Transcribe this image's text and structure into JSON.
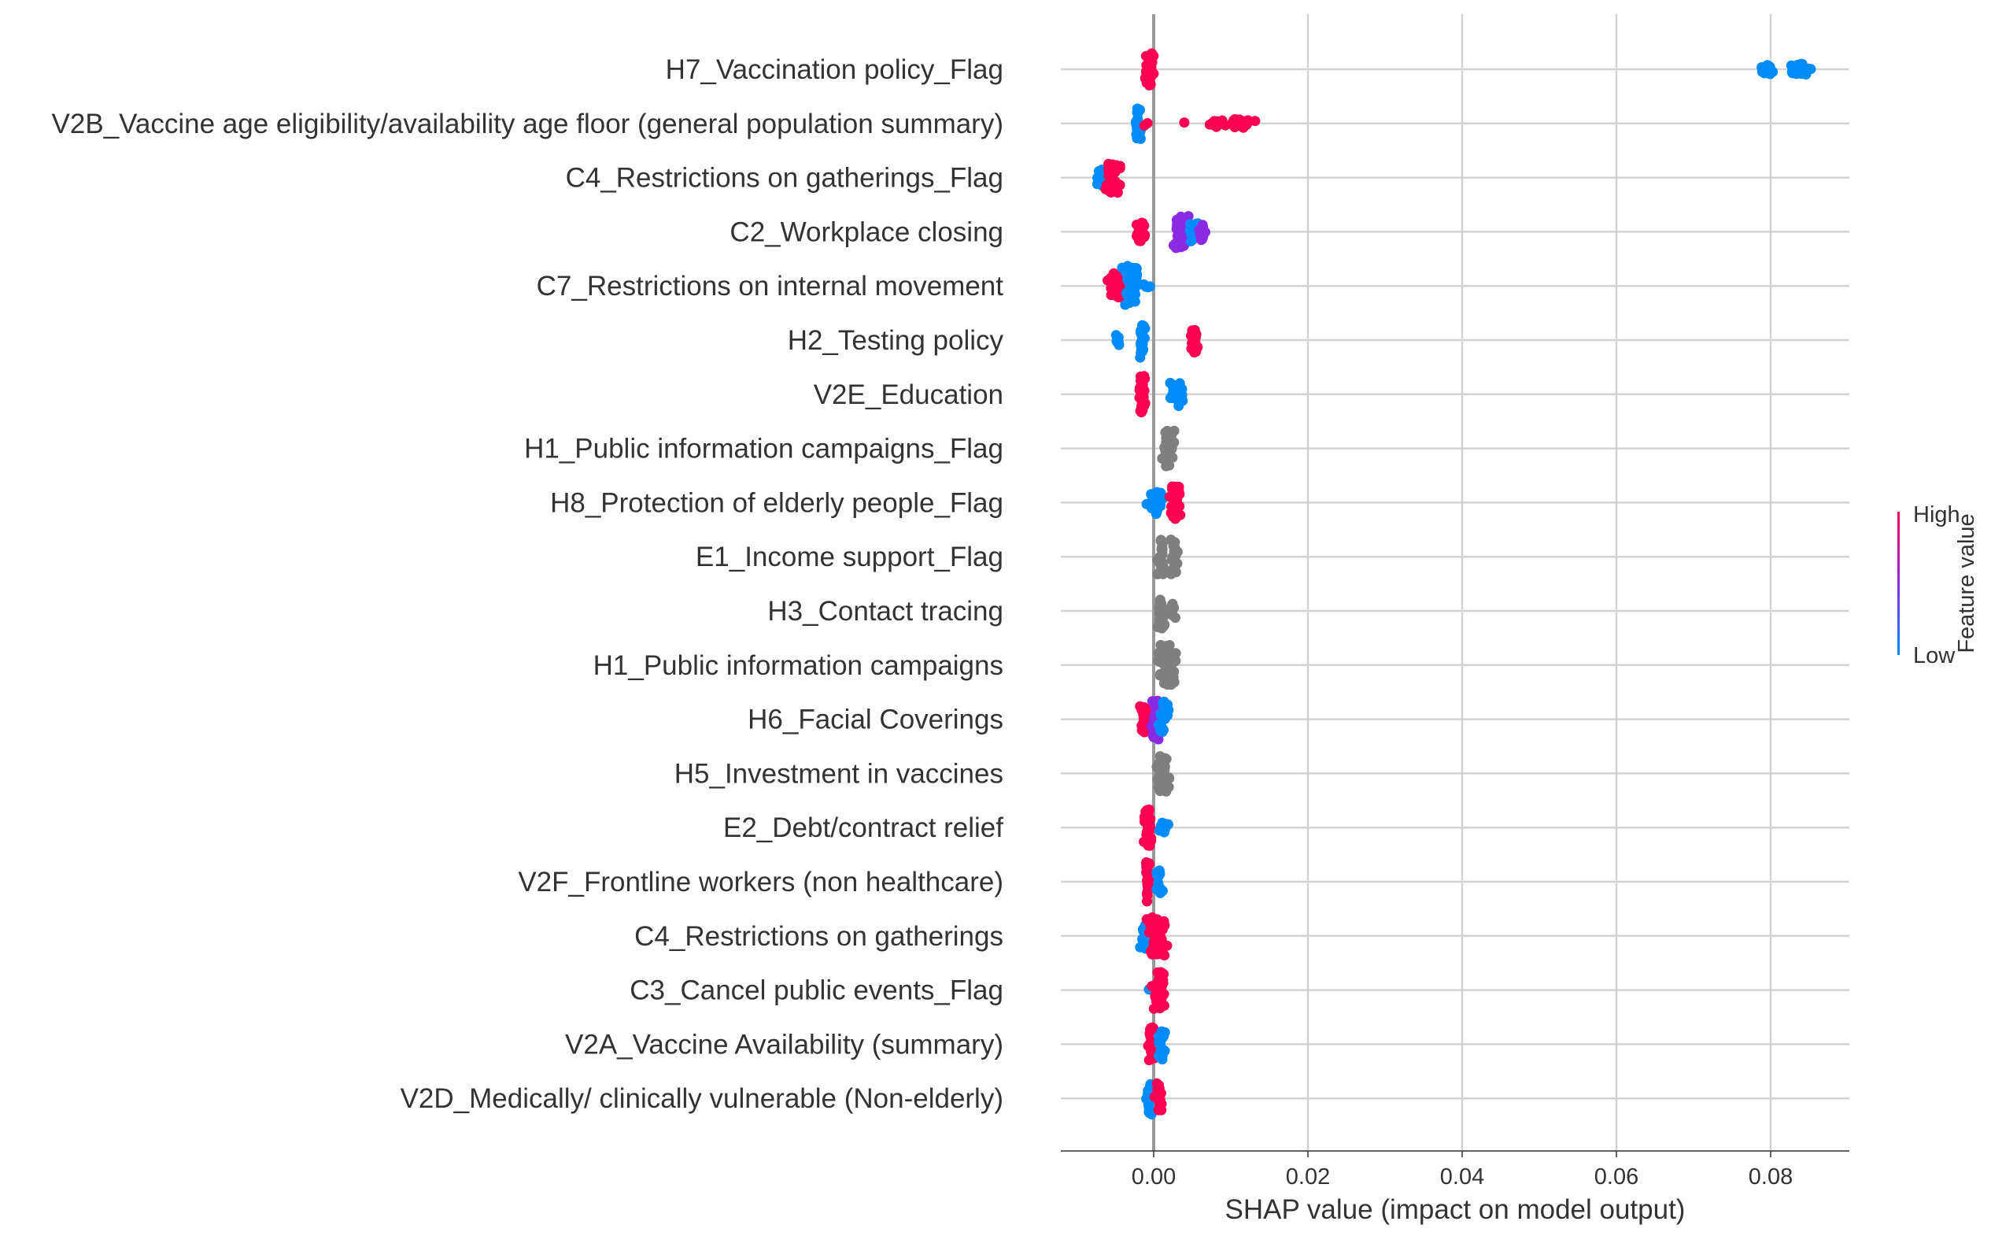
{
  "chart_data": {
    "type": "scatter",
    "subtype": "shap-beeswarm",
    "title": "",
    "xlabel": "SHAP value (impact on model output)",
    "ylabel": "",
    "xlim": [
      -0.012,
      0.09
    ],
    "xticks": [
      0.0,
      0.02,
      0.04,
      0.06,
      0.08
    ],
    "xtick_labels": [
      "0.00",
      "0.02",
      "0.04",
      "0.06",
      "0.08"
    ],
    "grid": true,
    "colorbar": {
      "label": "Feature value",
      "high_label": "High",
      "low_label": "Low",
      "high_color": "#ff0052",
      "mid_color": "#8a2be2",
      "low_color": "#008bfb",
      "nan_color": "#7f7f7f"
    },
    "features": [
      {
        "name": "H7_Vaccination policy_Flag",
        "clusters": [
          {
            "center": -0.0005,
            "width": 0.0006,
            "spread": 0.7,
            "count": 40,
            "color": "high"
          },
          {
            "center": 0.0795,
            "width": 0.0012,
            "spread": 0.25,
            "count": 12,
            "color": "low"
          },
          {
            "center": 0.0838,
            "width": 0.0018,
            "spread": 0.25,
            "count": 18,
            "color": "low"
          }
        ]
      },
      {
        "name": "V2B_Vaccine age eligibility/availability age floor (general population summary)",
        "clusters": [
          {
            "center": -0.002,
            "width": 0.0004,
            "spread": 0.7,
            "count": 30,
            "color": "low"
          },
          {
            "center": -0.001,
            "width": 0.0003,
            "spread": 0.1,
            "count": 2,
            "color": "high"
          },
          {
            "center": 0.004,
            "width": 0.0002,
            "spread": 0.05,
            "count": 1,
            "color": "high"
          },
          {
            "center": 0.0075,
            "width": 0.0015,
            "spread": 0.15,
            "count": 12,
            "color": "high"
          },
          {
            "center": 0.011,
            "width": 0.0018,
            "spread": 0.2,
            "count": 24,
            "color": "high"
          }
        ]
      },
      {
        "name": "C4_Restrictions on gatherings_Flag",
        "clusters": [
          {
            "center": -0.0068,
            "width": 0.0008,
            "spread": 0.35,
            "count": 20,
            "color": "low"
          },
          {
            "center": -0.0052,
            "width": 0.0009,
            "spread": 0.65,
            "count": 40,
            "color": "high"
          }
        ]
      },
      {
        "name": "C2_Workplace closing",
        "clusters": [
          {
            "center": -0.0015,
            "width": 0.0007,
            "spread": 0.4,
            "count": 25,
            "color": "high"
          },
          {
            "center": 0.0035,
            "width": 0.0011,
            "spread": 0.7,
            "count": 45,
            "color": "mid"
          },
          {
            "center": 0.0052,
            "width": 0.0007,
            "spread": 0.4,
            "count": 14,
            "color": "low"
          },
          {
            "center": 0.0063,
            "width": 0.0006,
            "spread": 0.35,
            "count": 12,
            "color": "mid"
          }
        ]
      },
      {
        "name": "C7_Restrictions on internal movement",
        "clusters": [
          {
            "center": -0.005,
            "width": 0.001,
            "spread": 0.55,
            "count": 30,
            "color": "high"
          },
          {
            "center": -0.0028,
            "width": 0.0011,
            "spread": 0.85,
            "count": 50,
            "color": "low"
          },
          {
            "center": -0.001,
            "width": 0.0005,
            "spread": 0.15,
            "count": 4,
            "color": "low"
          }
        ]
      },
      {
        "name": "H2_Testing policy",
        "clusters": [
          {
            "center": -0.0048,
            "width": 0.0004,
            "spread": 0.25,
            "count": 8,
            "color": "low"
          },
          {
            "center": -0.0015,
            "width": 0.0003,
            "spread": 0.8,
            "count": 30,
            "color": "low"
          },
          {
            "center": 0.0053,
            "width": 0.0004,
            "spread": 0.55,
            "count": 25,
            "color": "high"
          }
        ]
      },
      {
        "name": "V2E_Education",
        "clusters": [
          {
            "center": -0.0015,
            "width": 0.0004,
            "spread": 0.8,
            "count": 35,
            "color": "high"
          },
          {
            "center": 0.003,
            "width": 0.001,
            "spread": 0.5,
            "count": 25,
            "color": "low"
          }
        ]
      },
      {
        "name": "H1_Public information campaigns_Flag",
        "clusters": [
          {
            "center": 0.002,
            "width": 0.0006,
            "spread": 0.8,
            "count": 45,
            "color": "nan"
          }
        ]
      },
      {
        "name": "H8_Protection of elderly people_Flag",
        "clusters": [
          {
            "center": 0.0003,
            "width": 0.0008,
            "spread": 0.5,
            "count": 22,
            "color": "low"
          },
          {
            "center": 0.0028,
            "width": 0.0007,
            "spread": 0.75,
            "count": 40,
            "color": "high"
          }
        ]
      },
      {
        "name": "E1_Income support_Flag",
        "clusters": [
          {
            "center": 0.001,
            "width": 0.0005,
            "spread": 0.75,
            "count": 30,
            "color": "nan"
          },
          {
            "center": 0.0027,
            "width": 0.0005,
            "spread": 0.75,
            "count": 30,
            "color": "nan"
          }
        ]
      },
      {
        "name": "H3_Contact tracing",
        "clusters": [
          {
            "center": 0.001,
            "width": 0.0004,
            "spread": 0.8,
            "count": 28,
            "color": "nan"
          },
          {
            "center": 0.0023,
            "width": 0.0006,
            "spread": 0.35,
            "count": 15,
            "color": "nan"
          }
        ]
      },
      {
        "name": "H1_Public information campaigns",
        "clusters": [
          {
            "center": 0.0016,
            "width": 0.0011,
            "spread": 0.85,
            "count": 55,
            "color": "nan"
          }
        ]
      },
      {
        "name": "H6_Facial Coverings",
        "clusters": [
          {
            "center": -0.0012,
            "width": 0.0005,
            "spread": 0.6,
            "count": 25,
            "color": "high"
          },
          {
            "center": 0.0003,
            "width": 0.0006,
            "spread": 0.85,
            "count": 30,
            "color": "mid"
          },
          {
            "center": 0.0013,
            "width": 0.0005,
            "spread": 0.75,
            "count": 25,
            "color": "low"
          }
        ]
      },
      {
        "name": "H5_Investment in vaccines",
        "clusters": [
          {
            "center": 0.0012,
            "width": 0.0007,
            "spread": 0.85,
            "count": 40,
            "color": "nan"
          }
        ]
      },
      {
        "name": "E2_Debt/contract relief",
        "clusters": [
          {
            "center": -0.0008,
            "width": 0.0005,
            "spread": 0.8,
            "count": 35,
            "color": "high"
          },
          {
            "center": 0.0012,
            "width": 0.0008,
            "spread": 0.25,
            "count": 12,
            "color": "low"
          }
        ]
      },
      {
        "name": "V2F_Frontline workers  (non healthcare)",
        "clusters": [
          {
            "center": -0.0008,
            "width": 0.0003,
            "spread": 0.85,
            "count": 30,
            "color": "high"
          },
          {
            "center": 0.0007,
            "width": 0.0004,
            "spread": 0.5,
            "count": 15,
            "color": "low"
          }
        ]
      },
      {
        "name": "C4_Restrictions on gatherings",
        "clusters": [
          {
            "center": -0.001,
            "width": 0.0005,
            "spread": 0.6,
            "count": 20,
            "color": "low"
          },
          {
            "center": 0.0005,
            "width": 0.0012,
            "spread": 0.85,
            "count": 55,
            "color": "high"
          }
        ]
      },
      {
        "name": "C3_Cancel public events_Flag",
        "clusters": [
          {
            "center": -0.0006,
            "width": 0.0001,
            "spread": 0.05,
            "count": 1,
            "color": "low"
          },
          {
            "center": 0.0007,
            "width": 0.0007,
            "spread": 0.8,
            "count": 40,
            "color": "high"
          }
        ]
      },
      {
        "name": "V2A_Vaccine Availability (summary)",
        "clusters": [
          {
            "center": -0.0002,
            "width": 0.0004,
            "spread": 0.8,
            "count": 30,
            "color": "high"
          },
          {
            "center": 0.001,
            "width": 0.0004,
            "spread": 0.65,
            "count": 22,
            "color": "low"
          }
        ]
      },
      {
        "name": "V2D_Medically/ clinically vulnerable (Non-elderly)",
        "clusters": [
          {
            "center": -0.0005,
            "width": 0.0005,
            "spread": 0.7,
            "count": 25,
            "color": "low"
          },
          {
            "center": 0.0007,
            "width": 0.0004,
            "spread": 0.7,
            "count": 22,
            "color": "high"
          }
        ]
      }
    ]
  }
}
